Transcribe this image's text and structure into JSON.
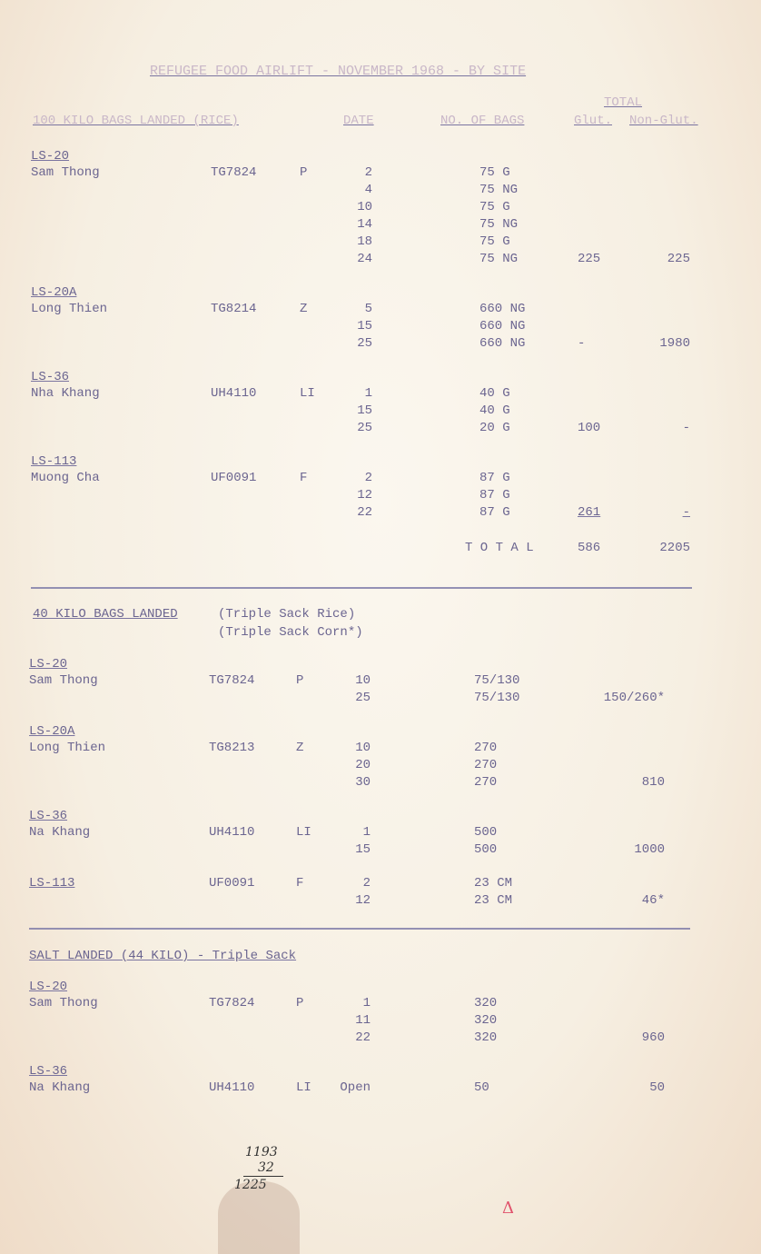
{
  "title": "REFUGEE FOOD AIRLIFT - NOVEMBER 1968 - BY SITE",
  "header": {
    "section1": "100 KILO BAGS LANDED (RICE)",
    "date": "DATE",
    "bags": "NO. OF BAGS",
    "total": "TOTAL",
    "glut": "Glut.",
    "nonglut": "Non-Glut."
  },
  "section1": {
    "sites": [
      {
        "site": "LS-20",
        "name": "Sam Thong",
        "code": "TG7824",
        "letter": "P",
        "rows": [
          [
            "2",
            "75 G"
          ],
          [
            "4",
            "75 NG"
          ],
          [
            "10",
            "75 G"
          ],
          [
            "14",
            "75 NG"
          ],
          [
            "18",
            "75 G"
          ],
          [
            "24",
            "75 NG"
          ]
        ],
        "glut": "225",
        "nonglut": "225"
      },
      {
        "site": "LS-20A",
        "name": "Long Thien",
        "code": "TG8214",
        "letter": "Z",
        "rows": [
          [
            "5",
            "660 NG"
          ],
          [
            "15",
            "660 NG"
          ],
          [
            "25",
            "660 NG"
          ]
        ],
        "glut": "-",
        "nonglut": "1980"
      },
      {
        "site": "LS-36",
        "name": "Nha Khang",
        "code": "UH4110",
        "letter": "LI",
        "rows": [
          [
            "1",
            "40 G"
          ],
          [
            "15",
            "40 G"
          ],
          [
            "25",
            "20 G"
          ]
        ],
        "glut": "100",
        "nonglut": "-"
      },
      {
        "site": "LS-113",
        "name": "Muong Cha",
        "code": "UF0091",
        "letter": "F",
        "rows": [
          [
            "2",
            "87 G"
          ],
          [
            "12",
            "87 G"
          ],
          [
            "22",
            "87 G"
          ]
        ],
        "glut": "261",
        "nonglut": "-"
      }
    ],
    "total_label": "T O T A L",
    "total_glut": "586",
    "total_nonglut": "2205"
  },
  "section2": {
    "heading": "40 KILO BAGS LANDED",
    "sub1": "(Triple Sack Rice)",
    "sub2": "(Triple Sack Corn*)",
    "sites": [
      {
        "site": "LS-20",
        "name": "Sam Thong",
        "code": "TG7824",
        "letter": "P",
        "rows": [
          [
            "10",
            "75/130"
          ],
          [
            "25",
            "75/130"
          ]
        ],
        "total": "150/260*"
      },
      {
        "site": "LS-20A",
        "name": "Long Thien",
        "code": "TG8213",
        "letter": "Z",
        "rows": [
          [
            "10",
            "270"
          ],
          [
            "20",
            "270"
          ],
          [
            "30",
            "270"
          ]
        ],
        "total": "810"
      },
      {
        "site": "LS-36",
        "name": "Na Khang",
        "code": "UH4110",
        "letter": "LI",
        "rows": [
          [
            "1",
            "500"
          ],
          [
            "15",
            "500"
          ]
        ],
        "total": "1000"
      },
      {
        "site": "LS-113",
        "name": "",
        "code": "UF0091",
        "letter": "F",
        "rows": [
          [
            "2",
            "23 CM"
          ],
          [
            "12",
            "23 CM"
          ]
        ],
        "total": "46*"
      }
    ]
  },
  "section3": {
    "heading": "SALT LANDED (44 KILO) - Triple Sack",
    "sites": [
      {
        "site": "LS-20",
        "name": "Sam Thong",
        "code": "TG7824",
        "letter": "P",
        "rows": [
          [
            "1",
            "320"
          ],
          [
            "11",
            "320"
          ],
          [
            "22",
            "320"
          ]
        ],
        "total": "960"
      },
      {
        "site": "LS-36",
        "name": "Na Khang",
        "code": "UH4110",
        "letter": "LI",
        "rows": [
          [
            "Open",
            "50"
          ]
        ],
        "total": "50"
      }
    ]
  },
  "handwritten": {
    "line1": "1193",
    "line2": "32",
    "line3": "1225",
    "mark": "Δ"
  }
}
